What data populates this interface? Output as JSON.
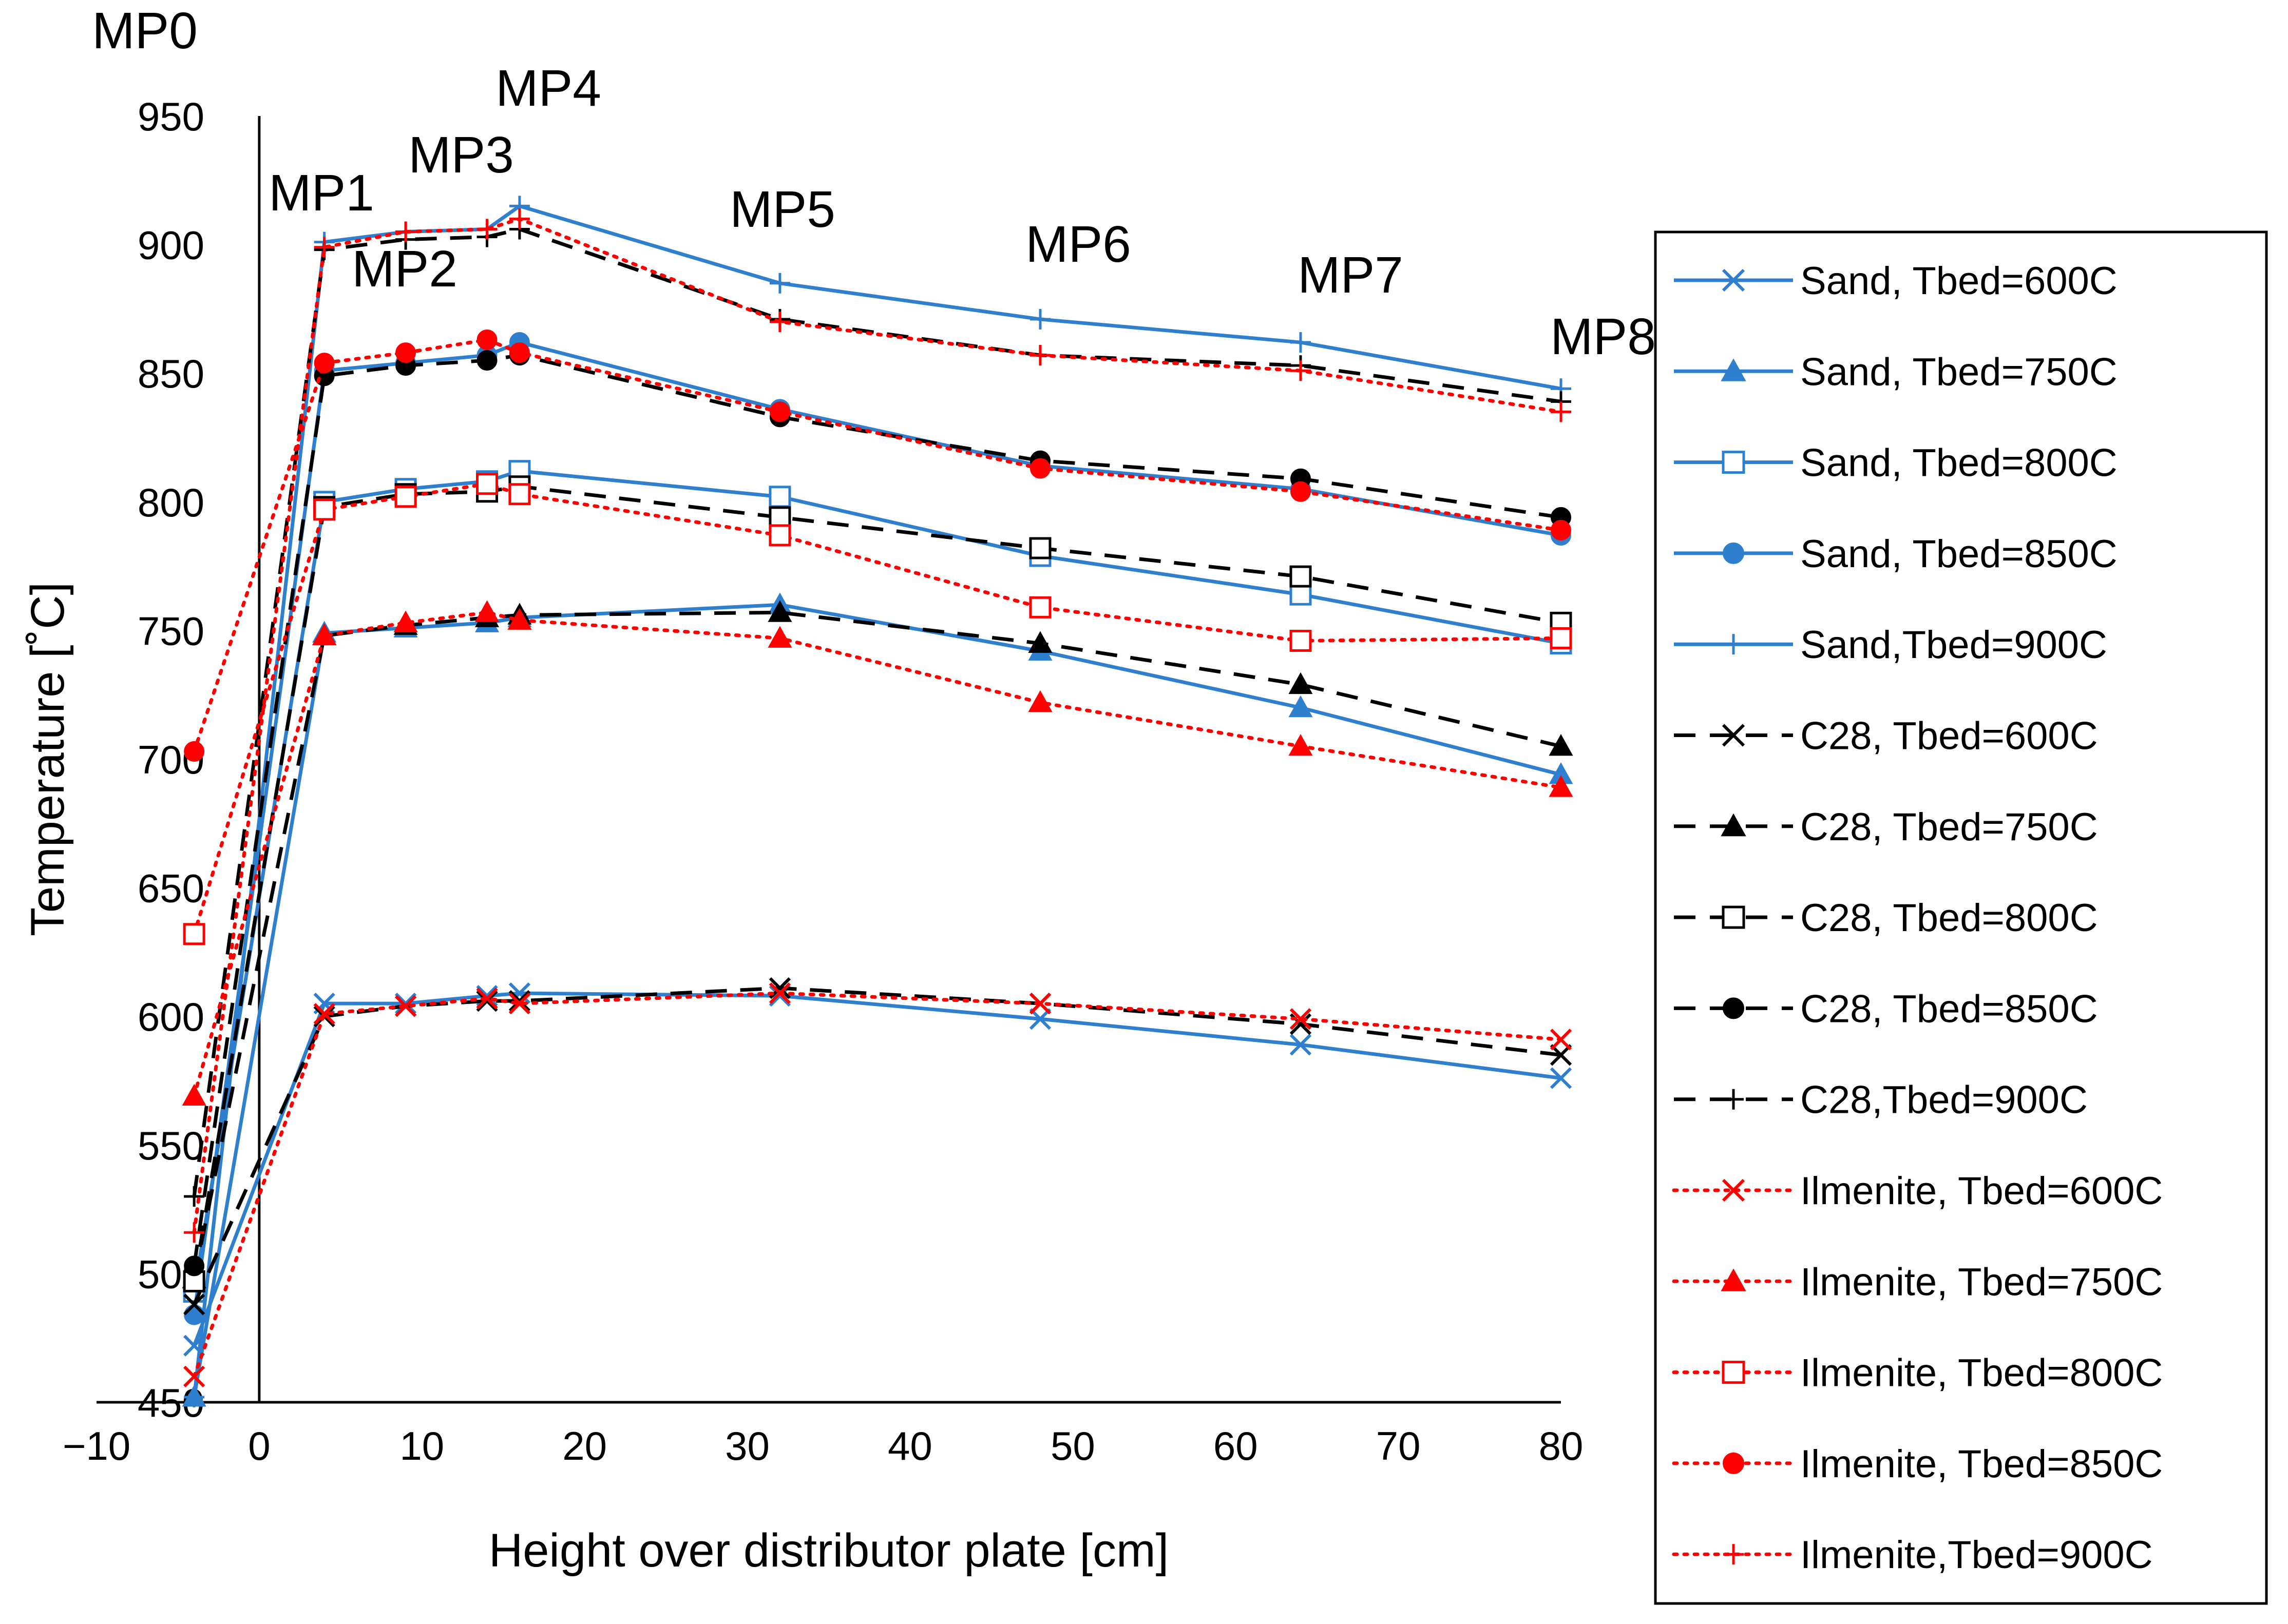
{
  "chart_data": {
    "type": "line",
    "xlabel": "Height over distributor plate [cm]",
    "ylabel": "Temperature [˚C]",
    "xlim": [
      -10,
      80
    ],
    "ylim": [
      450,
      950
    ],
    "xticks": [
      -10,
      0,
      10,
      20,
      30,
      40,
      50,
      60,
      70,
      80
    ],
    "yticks": [
      450,
      500,
      550,
      600,
      650,
      700,
      750,
      800,
      850,
      900,
      950
    ],
    "xtick_labels": [
      "−10",
      "0",
      "10",
      "20",
      "30",
      "40",
      "50",
      "60",
      "70",
      "80"
    ],
    "ytick_labels": [
      "450",
      "500",
      "550",
      "600",
      "650",
      "700",
      "750",
      "800",
      "850",
      "900",
      "950"
    ],
    "grid": false,
    "legend_position": "right",
    "measurement_points": [
      {
        "label": "MP0",
        "x": -4
      },
      {
        "label": "MP1",
        "x": 4
      },
      {
        "label": "MP2",
        "x": 9
      },
      {
        "label": "MP3",
        "x": 14
      },
      {
        "label": "MP4",
        "x": 16
      },
      {
        "label": "MP5",
        "x": 32
      },
      {
        "label": "MP6",
        "x": 48
      },
      {
        "label": "MP7",
        "x": 64
      },
      {
        "label": "MP8",
        "x": 80
      }
    ],
    "x": [
      -4,
      4,
      9,
      14,
      16,
      32,
      48,
      64,
      80
    ],
    "colors": {
      "sand": "#2f7fcf",
      "c28": "#000000",
      "ilmenite": "#ff0000"
    },
    "series": [
      {
        "name": "Sand, Tbed=600C",
        "group": "sand",
        "marker": "x",
        "values": [
          472,
          605,
          605,
          608,
          609,
          608,
          599,
          589,
          576
        ]
      },
      {
        "name": "Sand, Tbed=750C",
        "group": "sand",
        "marker": "triangle",
        "values": [
          452,
          749,
          751,
          753,
          755,
          760,
          742,
          720,
          694
        ]
      },
      {
        "name": "Sand, Tbed=800C",
        "group": "sand",
        "marker": "square",
        "values": [
          493,
          800,
          805,
          808,
          812,
          802,
          779,
          764,
          745
        ]
      },
      {
        "name": "Sand, Tbed=850C",
        "group": "sand",
        "marker": "circle",
        "values": [
          484,
          851,
          854,
          857,
          862,
          836,
          814,
          805,
          787
        ]
      },
      {
        "name": "Sand,Tbed=900C",
        "group": "sand",
        "marker": "plus",
        "values": [
          452,
          901,
          905,
          906,
          915,
          885,
          871,
          862,
          844
        ]
      },
      {
        "name": "C28, Tbed=600C",
        "group": "c28",
        "marker": "x",
        "values": [
          488,
          600,
          604,
          606,
          606,
          611,
          605,
          597,
          585
        ]
      },
      {
        "name": "C28, Tbed=750C",
        "group": "c28",
        "marker": "triangle",
        "values": [
          498,
          748,
          752,
          755,
          756,
          757,
          745,
          729,
          705
        ]
      },
      {
        "name": "C28, Tbed=800C",
        "group": "c28",
        "marker": "square",
        "values": [
          497,
          798,
          803,
          804,
          806,
          794,
          782,
          771,
          753
        ]
      },
      {
        "name": "C28, Tbed=850C",
        "group": "c28",
        "marker": "circle",
        "values": [
          503,
          849,
          853,
          855,
          857,
          833,
          816,
          809,
          794
        ]
      },
      {
        "name": "C28,Tbed=900C",
        "group": "c28",
        "marker": "plus",
        "values": [
          530,
          898,
          902,
          903,
          906,
          871,
          857,
          853,
          839
        ]
      },
      {
        "name": "Ilmenite, Tbed=600C",
        "group": "ilmenite",
        "marker": "x",
        "values": [
          460,
          601,
          604,
          607,
          605,
          609,
          605,
          599,
          591
        ]
      },
      {
        "name": "Ilmenite, Tbed=750C",
        "group": "ilmenite",
        "marker": "triangle",
        "values": [
          569,
          748,
          753,
          757,
          754,
          747,
          722,
          705,
          689
        ]
      },
      {
        "name": "Ilmenite, Tbed=800C",
        "group": "ilmenite",
        "marker": "square",
        "values": [
          632,
          797,
          802,
          807,
          803,
          787,
          759,
          746,
          747
        ]
      },
      {
        "name": "Ilmenite, Tbed=850C",
        "group": "ilmenite",
        "marker": "circle",
        "values": [
          703,
          854,
          858,
          863,
          858,
          835,
          813,
          804,
          789
        ]
      },
      {
        "name": "Ilmenite,Tbed=900C",
        "group": "ilmenite",
        "marker": "plus",
        "values": [
          516,
          899,
          905,
          906,
          910,
          870,
          857,
          851,
          835
        ]
      }
    ]
  }
}
